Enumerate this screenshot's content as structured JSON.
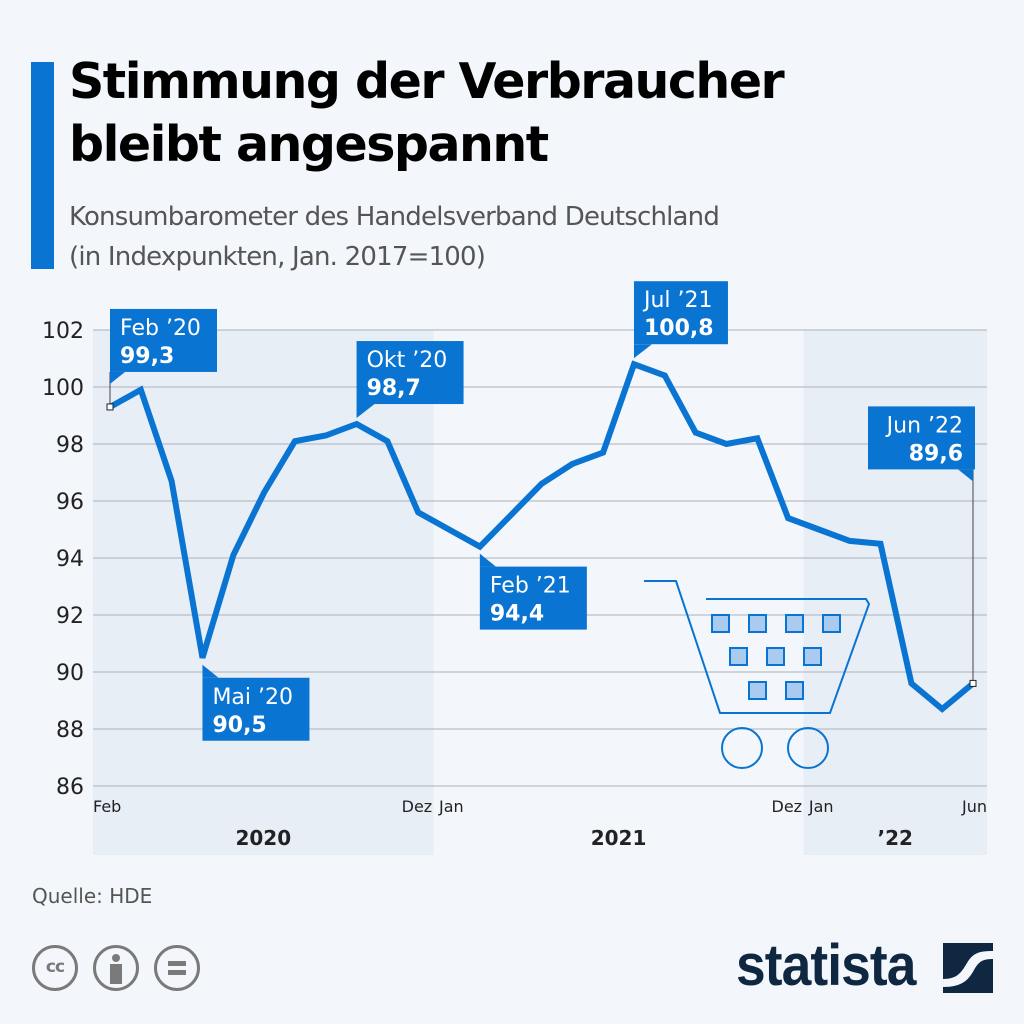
{
  "header": {
    "title_line1": "Stimmung der Verbraucher",
    "title_line2": "bleibt angespannt",
    "subtitle_line1": "Konsumbarometer des Handelsverband Deutschland",
    "subtitle_line2": "(in Indexpunkten, Jan. 2017=100)"
  },
  "colors": {
    "accent": "#0A74D2",
    "background": "#F3F7FB",
    "band": "#E8EEF6",
    "brand": "#0F2741",
    "icon_gray": "#7A7A7A"
  },
  "chart_data": {
    "type": "line",
    "title": "Konsumbarometer des Handelsverband Deutschland",
    "ylabel": "Indexpunkte (Jan. 2017=100)",
    "xlabel": "",
    "ylim": [
      86,
      102
    ],
    "yticks": [
      102,
      100,
      98,
      96,
      94,
      92,
      90,
      88,
      86
    ],
    "grid": true,
    "x": [
      "Feb 2020",
      "Mär 2020",
      "Apr 2020",
      "Mai 2020",
      "Jun 2020",
      "Jul 2020",
      "Aug 2020",
      "Sep 2020",
      "Okt 2020",
      "Nov 2020",
      "Dez 2020",
      "Jan 2021",
      "Feb 2021",
      "Mär 2021",
      "Apr 2021",
      "Mai 2021",
      "Jun 2021",
      "Jul 2021",
      "Aug 2021",
      "Sep 2021",
      "Okt 2021",
      "Nov 2021",
      "Dez 2021",
      "Jan 2022",
      "Feb 2022",
      "Mär 2022",
      "Apr 2022",
      "Mai 2022",
      "Jun 2022"
    ],
    "series": [
      {
        "name": "Konsumbarometer",
        "values": [
          99.3,
          99.9,
          96.7,
          90.5,
          94.1,
          96.3,
          98.1,
          98.3,
          98.7,
          98.1,
          95.6,
          95.0,
          94.4,
          95.5,
          96.6,
          97.3,
          97.7,
          100.8,
          100.4,
          98.4,
          98.0,
          98.2,
          95.4,
          95.0,
          94.6,
          94.5,
          89.6,
          88.7,
          89.6
        ]
      }
    ],
    "xtick_labels": [
      {
        "index": 0,
        "text": "Feb"
      },
      {
        "index": 10,
        "text": "Dez"
      },
      {
        "index": 11,
        "text": "Jan"
      },
      {
        "index": 22,
        "text": "Dez"
      },
      {
        "index": 23,
        "text": "Jan"
      },
      {
        "index": 28,
        "text": "Jun"
      }
    ],
    "year_bands": [
      {
        "label": "2020",
        "start": 0,
        "end": 10,
        "shaded": true
      },
      {
        "label": "2021",
        "start": 11,
        "end": 22,
        "shaded": false
      },
      {
        "label": "’22",
        "start": 23,
        "end": 28,
        "shaded": true
      }
    ],
    "annotations": [
      {
        "index": 0,
        "month": "Feb ’20",
        "value": "99,3",
        "placement": "above-right",
        "leader": true
      },
      {
        "index": 3,
        "month": "Mai ’20",
        "value": "90,5",
        "placement": "below-right"
      },
      {
        "index": 8,
        "month": "Okt ’20",
        "value": "98,7",
        "placement": "above-right"
      },
      {
        "index": 12,
        "month": "Feb ’21",
        "value": "94,4",
        "placement": "below-right"
      },
      {
        "index": 17,
        "month": "Jul ’21",
        "value": "100,8",
        "placement": "above-right"
      },
      {
        "index": 28,
        "month": "Jun ’22",
        "value": "89,6",
        "placement": "above-left",
        "leader": true
      }
    ]
  },
  "footer": {
    "source": "Quelle: HDE",
    "license_icons": [
      "cc-icon",
      "attribution-icon",
      "no-derivatives-icon"
    ],
    "cc_text": "cc",
    "brand": "statista"
  }
}
